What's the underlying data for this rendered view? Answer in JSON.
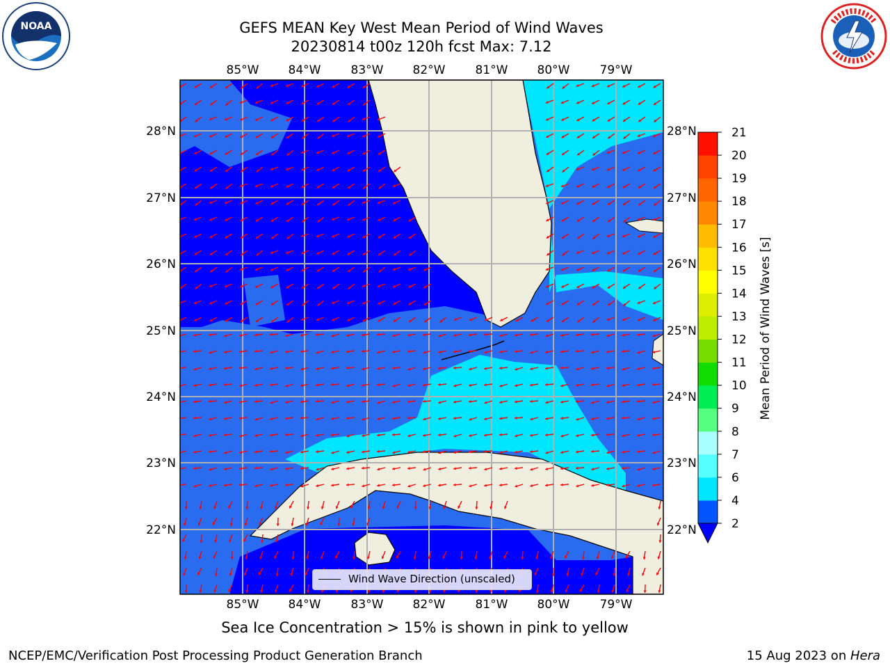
{
  "header": {
    "title_line1": "GEFS MEAN Key West Mean Period of Wind Waves",
    "title_line2": "20230814 t00z 120h fcst    Max: 7.12"
  },
  "logos": {
    "left": {
      "icon": "noaa-logo-icon",
      "text": "NOAA"
    },
    "right": {
      "icon": "nws-logo-icon",
      "text": "NATIONAL WEATHER SERVICE"
    }
  },
  "map": {
    "lon_labels": [
      "85°W",
      "84°W",
      "83°W",
      "82°W",
      "81°W",
      "80°W",
      "79°W"
    ],
    "lat_labels": [
      "28°N",
      "27°N",
      "26°N",
      "25°N",
      "24°N",
      "23°N",
      "22°N"
    ],
    "extent": {
      "lon_min": -86.0,
      "lon_max": -78.5,
      "lat_min": 21.0,
      "lat_max": 28.8
    },
    "colors": {
      "land": "#efeedf",
      "coast": "#000000",
      "grid": "#b0b0b0",
      "arrow": "#ff0000"
    }
  },
  "legend": {
    "label": "Wind Wave Direction (unscaled)"
  },
  "colorbar": {
    "label": "Mean Period of Wind Waves [s]",
    "ticks": [
      "2",
      "4",
      "6",
      "7",
      "8",
      "9",
      "10",
      "11",
      "12",
      "13",
      "14",
      "15",
      "16",
      "17",
      "18",
      "19",
      "20",
      "21"
    ],
    "colors": [
      "#0055ff",
      "#00e6ff",
      "#55ffff",
      "#aaffff",
      "#55ff7f",
      "#00ee55",
      "#11dd00",
      "#77dd00",
      "#bbee00",
      "#ddee00",
      "#ffff00",
      "#ffe000",
      "#ffbb00",
      "#ff8800",
      "#ff6600",
      "#ff4400",
      "#ff1100"
    ],
    "under_color": "#0000ff"
  },
  "note": "Sea Ice Concentration > 15% is shown in pink to yellow",
  "footer": {
    "left": "NCEP/EMC/Verification Post Processing Product Generation Branch",
    "right_prefix": "15 Aug 2023 on ",
    "right_machine": "Hera"
  }
}
